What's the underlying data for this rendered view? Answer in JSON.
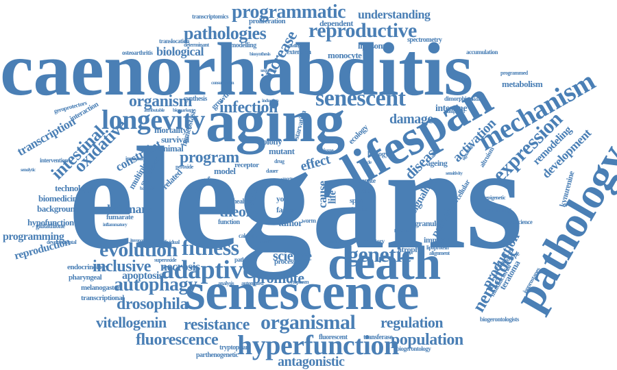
{
  "color": "#4a7fb5",
  "words": [
    {
      "text": "elegans",
      "rot": 0
    },
    {
      "text": "caenorhabditis",
      "rot": 0
    },
    {
      "text": "aging",
      "rot": 0
    },
    {
      "text": "senescence",
      "rot": 0
    },
    {
      "text": "lifespan",
      "rot": -30
    },
    {
      "text": "pathology",
      "rot": -60
    },
    {
      "text": "death",
      "rot": 0
    },
    {
      "text": "mechanism",
      "rot": -30
    },
    {
      "text": "longevity",
      "rot": 0
    },
    {
      "text": "senescent",
      "rot": 0
    },
    {
      "text": "hyperfunction",
      "rot": 0
    },
    {
      "text": "organismal",
      "rot": 0
    },
    {
      "text": "adaptive",
      "rot": 0
    },
    {
      "text": "reproductive",
      "rot": 0
    },
    {
      "text": "expression",
      "rot": -45
    },
    {
      "text": "fitness",
      "rot": 0
    },
    {
      "text": "evolution",
      "rot": 0
    },
    {
      "text": "genetic",
      "rot": 0
    },
    {
      "text": "programmatic",
      "rot": 0
    },
    {
      "text": "pathologies",
      "rot": 0
    },
    {
      "text": "autophagy",
      "rot": 0
    },
    {
      "text": "intestinal",
      "rot": -45
    },
    {
      "text": "oxidative",
      "rot": -45
    },
    {
      "text": "nematode",
      "rot": -60
    },
    {
      "text": "fluorescence",
      "rot": 0
    },
    {
      "text": "resistance",
      "rot": 0
    },
    {
      "text": "population",
      "rot": 0
    },
    {
      "text": "infection",
      "rot": 0
    },
    {
      "text": "organism",
      "rot": 0
    },
    {
      "text": "program",
      "rot": 0
    },
    {
      "text": "promote",
      "rot": 0
    },
    {
      "text": "inclusive",
      "rot": 0
    },
    {
      "text": "drosophila",
      "rot": 0
    },
    {
      "text": "vitellogenin",
      "rot": 0
    },
    {
      "text": "antagonistic",
      "rot": 0
    },
    {
      "text": "regulation",
      "rot": 0
    },
    {
      "text": "disease",
      "rot": -45
    },
    {
      "text": "increase",
      "rot": -60
    },
    {
      "text": "effect",
      "rot": -15
    },
    {
      "text": "theory",
      "rot": 0
    },
    {
      "text": "science",
      "rot": 0
    },
    {
      "text": "production",
      "rot": -60
    },
    {
      "text": "activation",
      "rot": -45
    },
    {
      "text": "damage",
      "rot": 0
    },
    {
      "text": "development",
      "rot": -45
    },
    {
      "text": "remodeling",
      "rot": -45
    },
    {
      "text": "understanding",
      "rot": 0
    },
    {
      "text": "biological",
      "rot": 0
    },
    {
      "text": "transcription",
      "rot": -30
    },
    {
      "text": "constraint",
      "rot": -30
    },
    {
      "text": "hallmark",
      "rot": 0
    },
    {
      "text": "necrosis",
      "rot": 0
    },
    {
      "text": "apoptosis",
      "rot": 0
    },
    {
      "text": "reproduction",
      "rot": -15
    },
    {
      "text": "programming",
      "rot": 0
    },
    {
      "text": "technology",
      "rot": 0
    },
    {
      "text": "biomedicine",
      "rot": 0
    },
    {
      "text": "background",
      "rot": 0
    },
    {
      "text": "hypofunction",
      "rot": 0
    },
    {
      "text": "signaling",
      "rot": -60
    },
    {
      "text": "paradigm",
      "rot": -60
    },
    {
      "text": "cause",
      "rot": -90
    },
    {
      "text": "life",
      "rot": -90
    },
    {
      "text": "intestine",
      "rot": 0
    },
    {
      "text": "metabolism",
      "rot": 0
    },
    {
      "text": "monocyte",
      "rot": 0
    },
    {
      "text": "liposome",
      "rot": 0
    },
    {
      "text": "dependent",
      "rot": 0
    },
    {
      "text": "proliferation",
      "rot": 0
    },
    {
      "text": "mortality",
      "rot": 0
    },
    {
      "text": "survival",
      "rot": 0
    },
    {
      "text": "animal",
      "rot": 0
    },
    {
      "text": "related",
      "rot": -45
    },
    {
      "text": "homeostasis",
      "rot": -75
    },
    {
      "text": "growth",
      "rot": -45
    },
    {
      "text": "starvation",
      "rot": -75
    },
    {
      "text": "colony",
      "rot": 0
    },
    {
      "text": "mutant",
      "rot": 0
    },
    {
      "text": "model",
      "rot": 0
    },
    {
      "text": "tumor",
      "rot": 0
    },
    {
      "text": "yolk",
      "rot": 0
    },
    {
      "text": "factor",
      "rot": 0
    },
    {
      "text": "healthy",
      "rot": 0
    },
    {
      "text": "immune",
      "rot": 0
    },
    {
      "text": "atrophy",
      "rot": 0
    },
    {
      "text": "ageing",
      "rot": 0
    },
    {
      "text": "training",
      "rot": 0
    },
    {
      "text": "granule",
      "rot": 0
    },
    {
      "text": "transcriptional",
      "rot": 0
    },
    {
      "text": "melanogaster",
      "rot": 0
    },
    {
      "text": "endocrinology",
      "rot": 0
    },
    {
      "text": "pharyngeal",
      "rot": 0
    },
    {
      "text": "glutathione",
      "rot": 0
    },
    {
      "text": "fumarate",
      "rot": 0
    },
    {
      "text": "tryptophan",
      "rot": 0
    },
    {
      "text": "fluorescent",
      "rot": 0
    },
    {
      "text": "transferase",
      "rot": 0
    },
    {
      "text": "parthenogenetic",
      "rot": 0
    },
    {
      "text": "biogerontology",
      "rot": 0
    },
    {
      "text": "biogerontologists",
      "rot": 0
    },
    {
      "text": "kynurenine",
      "rot": -75
    },
    {
      "text": "teratoma",
      "rot": -60
    },
    {
      "text": "multifactorial",
      "rot": -60
    },
    {
      "text": "osteoarthritis",
      "rot": 0
    },
    {
      "text": "accumulation",
      "rot": 0
    },
    {
      "text": "spectrometry",
      "rot": 0
    },
    {
      "text": "transcriptomics",
      "rot": 0
    },
    {
      "text": "translocation",
      "rot": 0
    },
    {
      "text": "modelling",
      "rot": 0
    },
    {
      "text": "extension",
      "rot": 0
    },
    {
      "text": "determinant",
      "rot": 0
    },
    {
      "text": "geroprotectors",
      "rot": -15
    },
    {
      "text": "interaction",
      "rot": -30
    },
    {
      "text": "intervention",
      "rot": 0
    },
    {
      "text": "synthesis",
      "rot": 0
    },
    {
      "text": "suppressor",
      "rot": -60
    },
    {
      "text": "multiple",
      "rot": -60
    },
    {
      "text": "ecology",
      "rot": -45
    },
    {
      "text": "biology",
      "rot": 0
    },
    {
      "text": "receptor",
      "rot": 0
    },
    {
      "text": "innate",
      "rot": 0
    },
    {
      "text": "action",
      "rot": 0
    },
    {
      "text": "span",
      "rot": 0
    },
    {
      "text": "trade",
      "rot": 0
    },
    {
      "text": "secretory",
      "rot": 0
    },
    {
      "text": "cellular",
      "rot": -60
    },
    {
      "text": "altruism",
      "rot": -60
    },
    {
      "text": "lipoprotein",
      "rot": 0
    },
    {
      "text": "alignment",
      "rot": 0
    },
    {
      "text": "phenotype",
      "rot": -30
    },
    {
      "text": "isoprostanes",
      "rot": -60
    },
    {
      "text": "geroscience",
      "rot": 0
    },
    {
      "text": "epigenetic",
      "rot": 0
    },
    {
      "text": "programmed",
      "rot": 0
    },
    {
      "text": "dimorphism",
      "rot": 0
    },
    {
      "text": "microbe",
      "rot": -45
    },
    {
      "text": "mutation",
      "rot": -75
    },
    {
      "text": "peroxide",
      "rot": 0
    },
    {
      "text": "function",
      "rot": 0
    },
    {
      "text": "calcium",
      "rot": 0
    },
    {
      "text": "processes",
      "rot": 0
    },
    {
      "text": "cytoplasm",
      "rot": 0
    },
    {
      "text": "analysis",
      "rot": 0
    },
    {
      "text": "automated",
      "rot": 0
    },
    {
      "text": "pathway",
      "rot": 0
    },
    {
      "text": "superoxide",
      "rot": 0
    },
    {
      "text": "individual",
      "rot": 0
    },
    {
      "text": "developmental",
      "rot": 0
    },
    {
      "text": "inflammatory",
      "rot": 0
    },
    {
      "text": "immunity",
      "rot": 0
    },
    {
      "text": "bacterial",
      "rot": 0
    },
    {
      "text": "iteroparous",
      "rot": 0
    },
    {
      "text": "consumption",
      "rot": 0
    },
    {
      "text": "sequence",
      "rot": 0
    },
    {
      "text": "biosynthesis",
      "rot": 0
    },
    {
      "text": "vitellogenins",
      "rot": 0
    },
    {
      "text": "senolytic",
      "rot": 0
    },
    {
      "text": "worm",
      "rot": 0
    },
    {
      "text": "strain",
      "rot": 0
    },
    {
      "text": "tissue",
      "rot": 0
    },
    {
      "text": "drug",
      "rot": 0
    },
    {
      "text": "muscle",
      "rot": 0
    },
    {
      "text": "dauer",
      "rot": 0
    },
    {
      "text": "morte",
      "rot": 0
    },
    {
      "text": "forkhead",
      "rot": 0
    },
    {
      "text": "distinct",
      "rot": 0
    },
    {
      "text": "sacrifice",
      "rot": 0
    },
    {
      "text": "induction",
      "rot": 0
    },
    {
      "text": "signalling",
      "rot": -60
    },
    {
      "text": "attributable",
      "rot": 0
    },
    {
      "text": "biomarkers",
      "rot": 0
    },
    {
      "text": "compound",
      "rot": 0
    },
    {
      "text": "sensitivity",
      "rot": 0
    },
    {
      "text": "antioxidant",
      "rot": 0
    }
  ]
}
